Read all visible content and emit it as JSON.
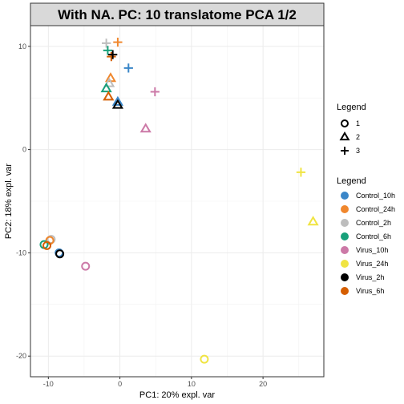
{
  "chart_data": {
    "type": "scatter",
    "title": "With NA. PC: 10 translatome PCA 1/2",
    "xlabel": "PC1: 20% expl. var",
    "ylabel": "PC2: 18% expl. var",
    "xlim": [
      -12.5,
      28.5
    ],
    "ylim": [
      -22,
      12
    ],
    "x_ticks": [
      -10,
      0,
      10,
      20
    ],
    "y_ticks": [
      -20,
      -10,
      0,
      10
    ],
    "grid": true,
    "legend_placement": "right",
    "shape_legend": {
      "title": "Legend",
      "items": [
        {
          "label": "1",
          "shape": "circle"
        },
        {
          "label": "2",
          "shape": "triangle"
        },
        {
          "label": "3",
          "shape": "plus"
        }
      ]
    },
    "color_legend": {
      "title": "Legend",
      "items": [
        {
          "label": "Control_10h",
          "color": "#3a86c8"
        },
        {
          "label": "Control_24h",
          "color": "#f0872d"
        },
        {
          "label": "Control_2h",
          "color": "#bdbdbd"
        },
        {
          "label": "Control_6h",
          "color": "#18a07a"
        },
        {
          "label": "Virus_10h",
          "color": "#cc79a7"
        },
        {
          "label": "Virus_24h",
          "color": "#f0e442"
        },
        {
          "label": "Virus_2h",
          "color": "#000000"
        },
        {
          "label": "Virus_6h",
          "color": "#d55e00"
        }
      ]
    },
    "points": [
      {
        "group": "Control_2h",
        "shape": "plus",
        "x": -1.9,
        "y": 10.3
      },
      {
        "group": "Control_24h",
        "shape": "plus",
        "x": -0.3,
        "y": 10.4
      },
      {
        "group": "Control_6h",
        "shape": "plus",
        "x": -1.7,
        "y": 9.6
      },
      {
        "group": "Virus_6h",
        "shape": "plus",
        "x": -1.2,
        "y": 9.0
      },
      {
        "group": "Virus_2h",
        "shape": "plus",
        "x": -1.0,
        "y": 9.2
      },
      {
        "group": "Control_10h",
        "shape": "plus",
        "x": 1.2,
        "y": 7.9
      },
      {
        "group": "Virus_10h",
        "shape": "plus",
        "x": 4.9,
        "y": 5.6
      },
      {
        "group": "Virus_24h",
        "shape": "plus",
        "x": 25.3,
        "y": -2.2
      },
      {
        "group": "Control_24h",
        "shape": "triangle",
        "x": -1.3,
        "y": 6.9
      },
      {
        "group": "Control_2h",
        "shape": "triangle",
        "x": -1.5,
        "y": 6.4
      },
      {
        "group": "Control_6h",
        "shape": "triangle",
        "x": -1.9,
        "y": 5.9
      },
      {
        "group": "Virus_6h",
        "shape": "triangle",
        "x": -1.6,
        "y": 5.1
      },
      {
        "group": "Control_10h",
        "shape": "triangle",
        "x": -0.3,
        "y": 4.6
      },
      {
        "group": "Virus_2h",
        "shape": "triangle",
        "x": -0.3,
        "y": 4.3
      },
      {
        "group": "Virus_10h",
        "shape": "triangle",
        "x": 3.6,
        "y": 2.0
      },
      {
        "group": "Virus_24h",
        "shape": "triangle",
        "x": 27.0,
        "y": -7.0
      },
      {
        "group": "Control_2h",
        "shape": "circle",
        "x": -9.6,
        "y": -8.7
      },
      {
        "group": "Control_24h",
        "shape": "circle",
        "x": -9.8,
        "y": -8.8
      },
      {
        "group": "Control_6h",
        "shape": "circle",
        "x": -10.6,
        "y": -9.2
      },
      {
        "group": "Virus_6h",
        "shape": "circle",
        "x": -10.2,
        "y": -9.3
      },
      {
        "group": "Control_10h",
        "shape": "circle",
        "x": -8.5,
        "y": -10.0
      },
      {
        "group": "Virus_2h",
        "shape": "circle",
        "x": -8.4,
        "y": -10.1
      },
      {
        "group": "Virus_10h",
        "shape": "circle",
        "x": -4.8,
        "y": -11.3
      },
      {
        "group": "Virus_24h",
        "shape": "circle",
        "x": 11.8,
        "y": -20.3
      }
    ]
  }
}
